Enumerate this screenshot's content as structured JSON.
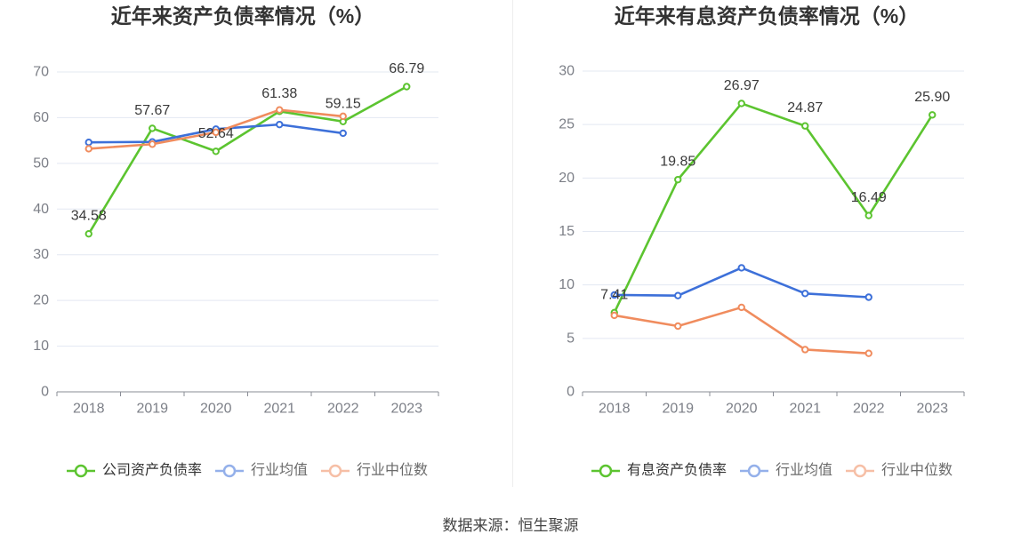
{
  "footer": {
    "source": "数据来源：恒生聚源"
  },
  "chart_data": [
    {
      "type": "line",
      "title": "近年来资产负债率情况（%）",
      "categories": [
        "2018",
        "2019",
        "2020",
        "2021",
        "2022",
        "2023"
      ],
      "ylim": [
        0,
        70
      ],
      "yticks": [
        0,
        10,
        20,
        30,
        40,
        50,
        60,
        70
      ],
      "grid": true,
      "legend_position": "bottom",
      "series": [
        {
          "name": "公司资产负债率",
          "color": "#5cc430",
          "data_labels": true,
          "values": [
            34.58,
            57.67,
            52.64,
            61.38,
            59.15,
            66.79
          ]
        },
        {
          "name": "行业均值",
          "color": "#3d70d9",
          "data_labels": false,
          "values": [
            54.6,
            54.7,
            57.5,
            58.5,
            56.6,
            null
          ]
        },
        {
          "name": "行业中位数",
          "color": "#f08c5e",
          "data_labels": false,
          "values": [
            53.2,
            54.2,
            56.8,
            61.7,
            60.3,
            null
          ]
        }
      ]
    },
    {
      "type": "line",
      "title": "近年来有息资产负债率情况（%）",
      "categories": [
        "2018",
        "2019",
        "2020",
        "2021",
        "2022",
        "2023"
      ],
      "ylim": [
        0,
        30
      ],
      "yticks": [
        0,
        5,
        10,
        15,
        20,
        25,
        30
      ],
      "grid": true,
      "legend_position": "bottom",
      "series": [
        {
          "name": "有息资产负债率",
          "color": "#5cc430",
          "data_labels": true,
          "values": [
            7.41,
            19.85,
            26.97,
            24.87,
            16.49,
            25.9
          ]
        },
        {
          "name": "行业均值",
          "color": "#3d70d9",
          "data_labels": false,
          "values": [
            9.06,
            9.0,
            11.6,
            9.2,
            8.85,
            null
          ]
        },
        {
          "name": "行业中位数",
          "color": "#f08c5e",
          "data_labels": false,
          "values": [
            7.15,
            6.15,
            7.9,
            3.95,
            3.6,
            null
          ]
        }
      ]
    }
  ]
}
